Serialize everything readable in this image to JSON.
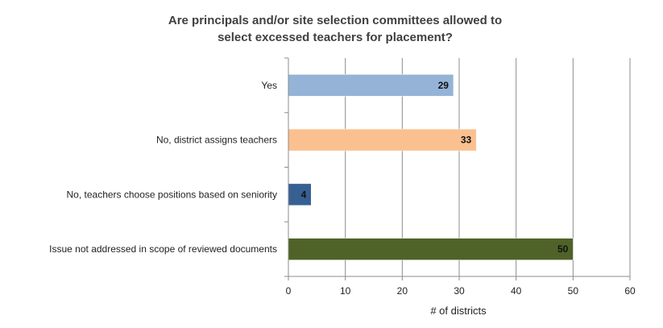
{
  "chart_data": {
    "type": "bar",
    "orientation": "horizontal",
    "title": "Are principals and/or site selection committees allowed to select excessed teachers for placement?",
    "title_lines": [
      "Are principals and/or site selection committees allowed to",
      "select excessed teachers for placement?"
    ],
    "categories": [
      "Yes",
      "No, district assigns teachers",
      "No, teachers choose positions based on seniority",
      "Issue not addressed in scope of reviewed documents"
    ],
    "values": [
      29,
      33,
      4,
      50
    ],
    "colors": [
      "#95b3d7",
      "#fac090",
      "#376092",
      "#4f6228"
    ],
    "xlabel": "# of districts",
    "ylabel": "",
    "xlim": [
      0,
      60
    ],
    "xticks": [
      0,
      10,
      20,
      30,
      40,
      50,
      60
    ],
    "grid": "vertical",
    "data_labels": true,
    "legend": "none"
  }
}
